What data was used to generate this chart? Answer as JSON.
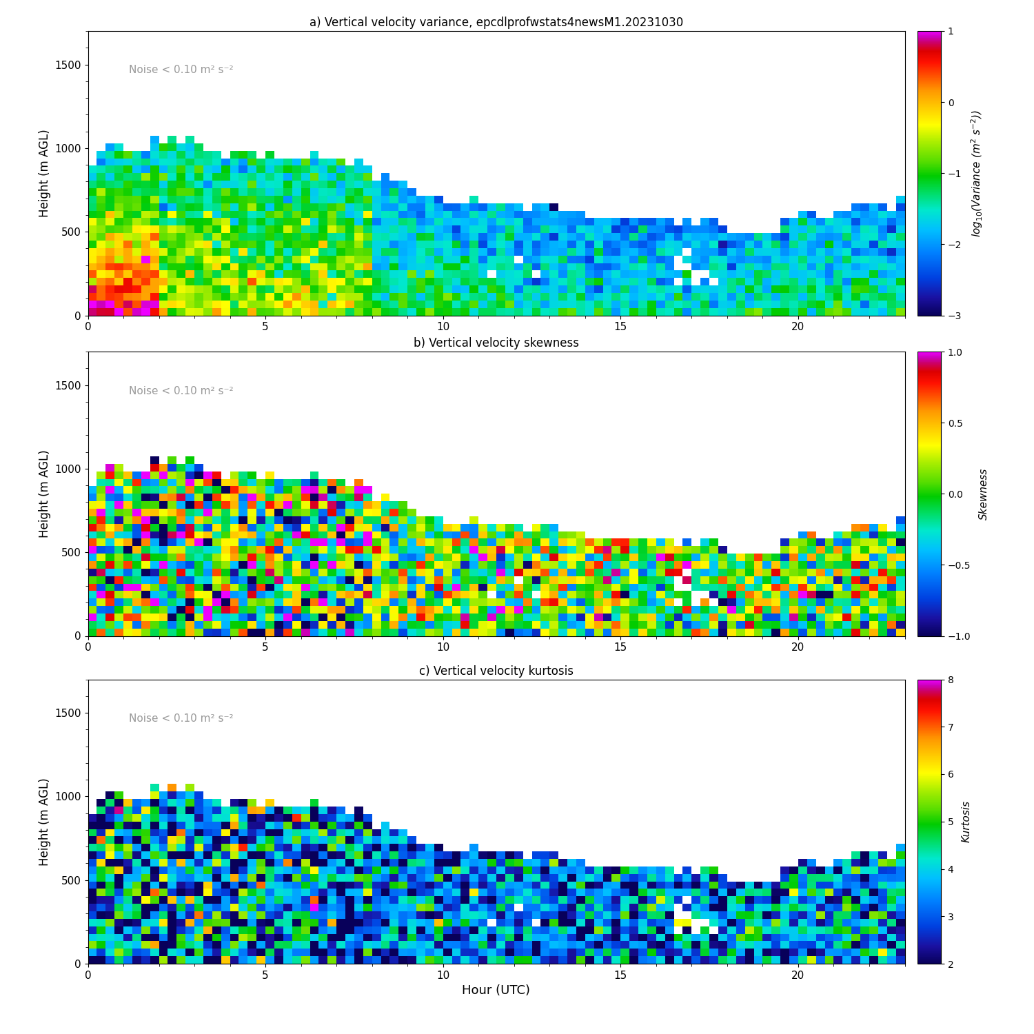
{
  "title_a": "a) Vertical velocity variance, epcdlprofwstats4newsM1.20231030",
  "title_b": "b) Vertical velocity skewness",
  "title_c": "c) Vertical velocity kurtosis",
  "noise_label": "Noise < 0.10 m² s⁻²",
  "xlabel": "Hour (UTC)",
  "ylabel": "Height (m AGL)",
  "cbar_label_a": "$\\mathit{log_{10}}$(Variance ($\\mathit{m^2}$ $\\mathit{s^{-2}}$))",
  "cbar_label_b": "$\\mathit{Skewness}$",
  "cbar_label_c": "$\\mathit{Kurtosis}$",
  "xlim": [
    0,
    23
  ],
  "ylim": [
    0,
    1700
  ],
  "yticks": [
    0,
    500,
    1000,
    1500
  ],
  "xticks": [
    0,
    5,
    10,
    15,
    20
  ],
  "cbar_ticks_a": [
    -3,
    -2,
    -1,
    0,
    1
  ],
  "cbar_ticks_b": [
    -1.0,
    -0.5,
    0.0,
    0.5,
    1.0
  ],
  "cbar_ticks_c": [
    2,
    3,
    4,
    5,
    6,
    7,
    8
  ],
  "vmin_a": -3,
  "vmax_a": 1,
  "vmin_b": -1,
  "vmax_b": 1,
  "vmin_c": 2,
  "vmax_c": 8,
  "figsize": [
    15,
    15
  ],
  "dpi": 100,
  "n_time": 92,
  "n_height": 38,
  "seed": 42
}
